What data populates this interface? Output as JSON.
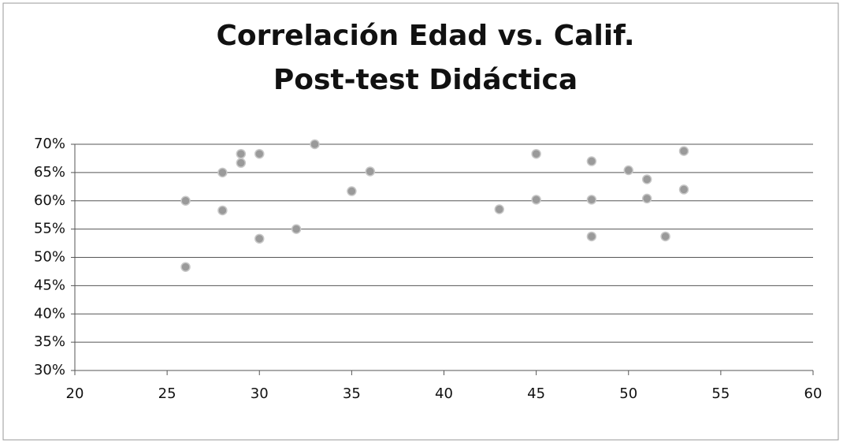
{
  "chart_data": {
    "type": "scatter",
    "title": "Correlación Edad vs. Calif. Post-test Didáctica",
    "x": [
      26,
      26,
      28,
      28,
      29,
      29,
      30,
      30,
      32,
      33,
      35,
      36,
      43,
      45,
      45,
      48,
      48,
      48,
      50,
      51,
      51,
      52,
      53,
      53
    ],
    "values": [
      60,
      48.3,
      65,
      58.3,
      68.3,
      66.7,
      68.3,
      53.3,
      55,
      70,
      61.7,
      65.2,
      58.5,
      68.3,
      60.2,
      67,
      60.2,
      53.7,
      65.4,
      63.8,
      60.4,
      53.7,
      68.8,
      62
    ],
    "color": "#9a9a9a",
    "xlim": [
      20,
      60
    ],
    "xticks": [
      20,
      25,
      30,
      35,
      40,
      45,
      50,
      55,
      60
    ],
    "ylim": [
      30,
      70
    ],
    "yticks": [
      {
        "value": 30,
        "label": "30%"
      },
      {
        "value": 35,
        "label": "35%"
      },
      {
        "value": 40,
        "label": "40%"
      },
      {
        "value": 45,
        "label": "45%"
      },
      {
        "value": 50,
        "label": "50%"
      },
      {
        "value": 55,
        "label": "55%"
      },
      {
        "value": 60,
        "label": "60%"
      },
      {
        "value": 65,
        "label": "65%"
      },
      {
        "value": 70,
        "label": "70%"
      }
    ],
    "grid": true
  }
}
